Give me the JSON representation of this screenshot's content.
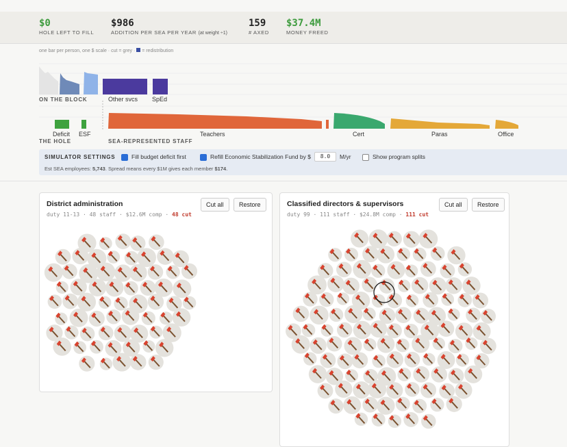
{
  "stats": [
    {
      "value": "$0",
      "label": "HOLE LEFT TO FILL"
    },
    {
      "value": "$986",
      "label": "ADDITION PER SEA PER YEAR",
      "note": "(at weight ÷1)"
    },
    {
      "value": "159",
      "label": "# AXED"
    },
    {
      "value": "$37.4M",
      "label": "MONEY FREED"
    }
  ],
  "chart": {
    "note": "one bar per person, one $ scale · cut = grey ·",
    "note_tail": "= redistribution",
    "block_label": "ON THE BLOCK",
    "other": "Other svcs",
    "sped": "SpEd",
    "deficit": "Deficit",
    "esf": "ESF",
    "hole_label": "THE HOLE",
    "staff_label": "SEA-REPRESENTED STAFF",
    "teachers": "Teachers",
    "cert": "Cert",
    "paras": "Paras",
    "office": "Office"
  },
  "settings": {
    "title": "SIMULATOR SETTINGS",
    "fill": "Fill budget deficit first",
    "refill": "Refill Economic Stabilization Fund by $",
    "refill_value": "8.0",
    "refill_unit": "M/yr",
    "splits": "Show program splits",
    "est": "Est SEA employees:",
    "est_value": "5,743",
    "spread": ". Spread means every $1M gives each member",
    "spread_value": "$174",
    "end": "."
  },
  "cards": [
    {
      "title": "District administration",
      "meta": "duty 11-13 · 48 staff · $12.6M comp ·",
      "cut": "48 cut",
      "cut_all": "Cut all",
      "restore": "Restore"
    },
    {
      "title": "Classified directors & supervisors",
      "meta": "duty 99 · 111 staff · $24.8M comp ·",
      "cut": "111 cut",
      "cut_all": "Cut all",
      "restore": "Restore"
    }
  ]
}
